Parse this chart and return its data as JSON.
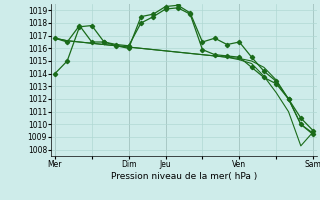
{
  "xlabel": "Pression niveau de la mer( hPa )",
  "background_color": "#ceecea",
  "grid_color": "#b0d8d4",
  "line_color": "#1a6b1a",
  "ylim": [
    1007.5,
    1019.5
  ],
  "yticks": [
    1008,
    1009,
    1010,
    1011,
    1012,
    1013,
    1014,
    1015,
    1016,
    1017,
    1018,
    1019
  ],
  "xtick_labels": [
    "Mer",
    "",
    "Dim",
    "Jeu",
    "",
    "Ven",
    "",
    "Sam"
  ],
  "xtick_positions": [
    0,
    3,
    6,
    9,
    12,
    15,
    18,
    21
  ],
  "vlines": [
    0,
    6,
    9,
    15,
    21
  ],
  "series": [
    [
      1014.0,
      1015.0,
      1017.7,
      1017.8,
      1016.5,
      1016.2,
      1016.0,
      1018.5,
      1018.7,
      1019.3,
      1019.4,
      1018.8,
      1016.5,
      1016.8,
      1016.3,
      1016.5,
      1015.3,
      1014.2,
      1013.4,
      1012.0,
      1010.5,
      1009.5
    ],
    [
      1016.8,
      1016.5,
      1017.8,
      1016.5,
      1016.5,
      1016.3,
      1016.2,
      1018.0,
      1018.5,
      1019.1,
      1019.2,
      1018.7,
      1015.9,
      1015.5,
      1015.4,
      1015.3,
      1014.5,
      1013.7,
      1013.2,
      1012.0,
      1010.0,
      1009.2
    ],
    [
      1016.8,
      1016.6,
      1016.5,
      1016.4,
      1016.3,
      1016.2,
      1016.1,
      1016.0,
      1015.9,
      1015.8,
      1015.7,
      1015.6,
      1015.5,
      1015.4,
      1015.3,
      1015.2,
      1015.0,
      1014.5,
      1013.5,
      1012.0,
      1010.0,
      1009.3
    ],
    [
      1016.8,
      1016.6,
      1016.5,
      1016.4,
      1016.3,
      1016.2,
      1016.1,
      1016.0,
      1015.9,
      1015.8,
      1015.7,
      1015.6,
      1015.5,
      1015.4,
      1015.3,
      1015.1,
      1014.8,
      1013.8,
      1012.5,
      1011.0,
      1008.3,
      1009.4
    ]
  ]
}
